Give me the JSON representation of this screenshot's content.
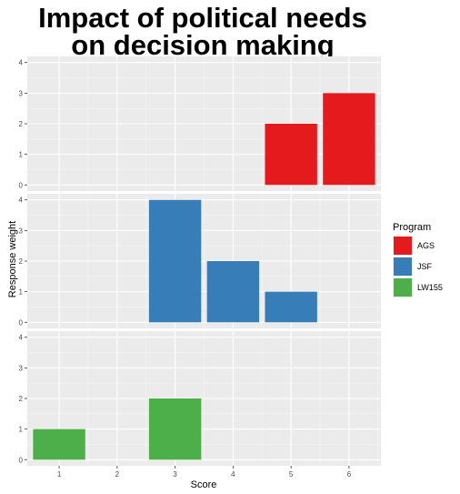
{
  "chart_data": {
    "type": "bar",
    "title_lines": [
      "Impact of political needs",
      "on decision making"
    ],
    "xlabel": "Score",
    "ylabel": "Response weight",
    "x_ticks": [
      1,
      2,
      3,
      4,
      5,
      6
    ],
    "y_ticks": [
      0,
      1,
      2,
      3,
      4
    ],
    "xlim": [
      0.45,
      6.55
    ],
    "ylim": [
      -0.2,
      4.2
    ],
    "grid": true,
    "legend": {
      "title": "Program",
      "position": "right",
      "entries": [
        {
          "label": "AGS",
          "color": "#E41A1C"
        },
        {
          "label": "JSF",
          "color": "#377EB8"
        },
        {
          "label": "LW155",
          "color": "#4DAF4A"
        }
      ]
    },
    "facets": [
      {
        "program": "AGS",
        "color": "#E41A1C",
        "bars": [
          {
            "x": 5,
            "y": 2
          },
          {
            "x": 6,
            "y": 3
          }
        ]
      },
      {
        "program": "JSF",
        "color": "#377EB8",
        "bars": [
          {
            "x": 3,
            "y": 4
          },
          {
            "x": 4,
            "y": 2
          },
          {
            "x": 5,
            "y": 1
          }
        ]
      },
      {
        "program": "LW155",
        "color": "#4DAF4A",
        "bars": [
          {
            "x": 1,
            "y": 1
          },
          {
            "x": 3,
            "y": 2
          }
        ]
      }
    ]
  }
}
